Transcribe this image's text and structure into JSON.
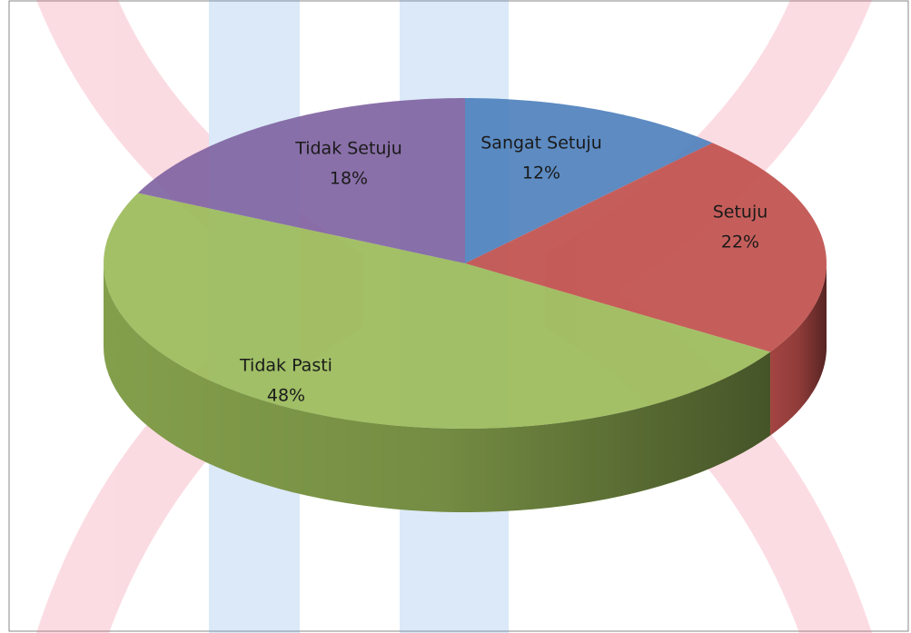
{
  "chart_data": {
    "type": "pie3d",
    "categories": [
      "Sangat Setuju",
      "Setuju",
      "Tidak Pasti",
      "Tidak Setuju"
    ],
    "values": [
      12,
      22,
      48,
      18
    ],
    "value_labels": [
      "12%",
      "22%",
      "48%",
      "18%"
    ],
    "colors": [
      "#4f81bd",
      "#c0504d",
      "#9bbb59",
      "#8064a2"
    ]
  }
}
